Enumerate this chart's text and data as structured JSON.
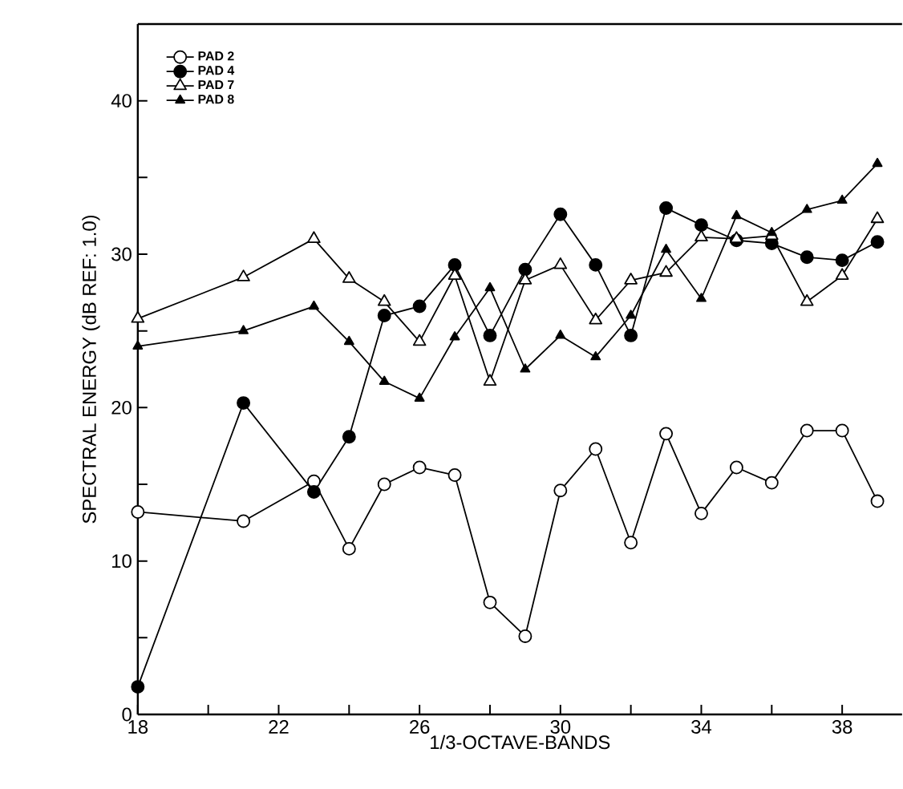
{
  "chart_data": {
    "type": "line",
    "xlabel": "1/3-OCTAVE-BANDS",
    "ylabel": "SPECTRAL ENERGY   (dB REF: 1.0)",
    "x": [
      18,
      21,
      23,
      24,
      25,
      26,
      27,
      28,
      29,
      30,
      31,
      32,
      33,
      34,
      35,
      36,
      37,
      38,
      39
    ],
    "xlim": [
      18,
      39.7
    ],
    "ylim": [
      0,
      45
    ],
    "xticks": [
      18,
      {
        "value": 20,
        "label": null
      },
      22,
      {
        "value": 24,
        "label": null
      },
      26,
      {
        "value": 28,
        "label": null
      },
      30,
      {
        "value": 32,
        "label": null
      },
      34,
      {
        "value": 36,
        "label": null
      },
      38
    ],
    "yticks": [
      0,
      {
        "value": 5,
        "label": null
      },
      10,
      {
        "value": 15,
        "label": null
      },
      20,
      {
        "value": 25,
        "label": null
      },
      30,
      {
        "value": 35,
        "label": null
      },
      40
    ],
    "legend": "top left",
    "grid": false,
    "line_style": "solid",
    "series": [
      {
        "name": "PAD 2",
        "marker": "circle",
        "color": "#ffffff",
        "values": [
          13.2,
          12.6,
          15.2,
          10.8,
          15.0,
          16.1,
          15.6,
          7.3,
          5.1,
          14.6,
          17.3,
          11.2,
          18.3,
          13.1,
          16.1,
          15.1,
          18.5,
          18.5,
          13.9
        ]
      },
      {
        "name": "PAD 4",
        "marker": "circle",
        "color": "#000000",
        "values": [
          1.8,
          20.3,
          14.5,
          18.1,
          26.0,
          26.6,
          29.3,
          24.7,
          29.0,
          32.6,
          29.3,
          24.7,
          33.0,
          31.9,
          30.9,
          30.7,
          29.8,
          29.6,
          30.8
        ]
      },
      {
        "name": "PAD 7",
        "marker": "triangle",
        "color": "#ffffff",
        "values": [
          25.8,
          28.5,
          31.0,
          28.4,
          26.9,
          24.3,
          28.6,
          21.7,
          28.3,
          29.3,
          25.7,
          28.3,
          28.8,
          31.1,
          31.0,
          31.2,
          26.9,
          28.6,
          32.3
        ]
      },
      {
        "name": "PAD 8",
        "marker": "triangle",
        "color": "#000000",
        "values": [
          24.0,
          25.0,
          26.6,
          24.3,
          21.7,
          20.6,
          24.6,
          27.8,
          22.5,
          24.7,
          23.3,
          26.0,
          30.3,
          27.1,
          32.5,
          31.4,
          32.9,
          33.5,
          35.9
        ]
      }
    ]
  }
}
